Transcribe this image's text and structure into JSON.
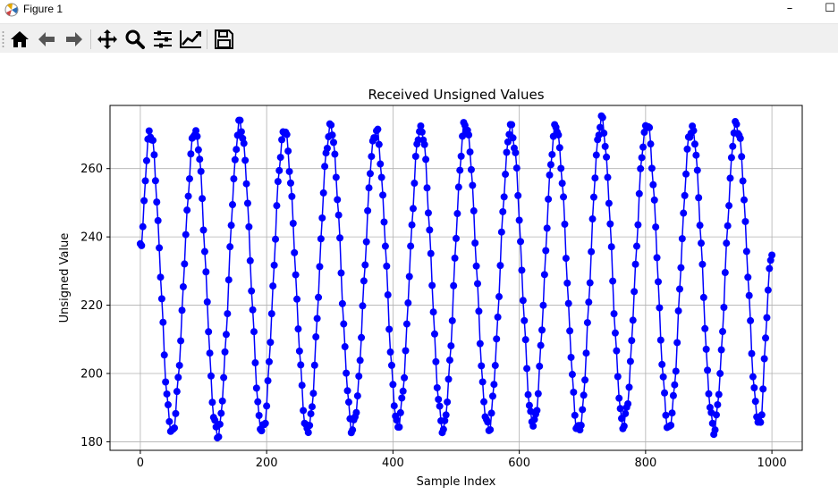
{
  "window": {
    "title": "Figure 1",
    "minimize_label": "–",
    "maximize_label": "☐"
  },
  "toolbar": {
    "tools": [
      {
        "name": "home-icon",
        "tooltip": "Home"
      },
      {
        "name": "back-icon",
        "tooltip": "Back"
      },
      {
        "name": "forward-icon",
        "tooltip": "Forward"
      },
      {
        "name": "pan-icon",
        "tooltip": "Pan"
      },
      {
        "name": "zoom-icon",
        "tooltip": "Zoom"
      },
      {
        "name": "subplots-icon",
        "tooltip": "Subplots"
      },
      {
        "name": "customize-icon",
        "tooltip": "Customize"
      },
      {
        "name": "save-icon",
        "tooltip": "Save"
      }
    ]
  },
  "chart_data": {
    "type": "line",
    "title": "Received Unsigned Values",
    "xlabel": "Sample Index",
    "ylabel": "Unsigned Value",
    "xlim": [
      -48,
      1048
    ],
    "ylim": [
      177.5,
      278.5
    ],
    "xticks": [
      0,
      200,
      400,
      600,
      800,
      1000
    ],
    "yticks": [
      180,
      200,
      220,
      240,
      260
    ],
    "grid": true,
    "marker": "o",
    "color": "#0000ff",
    "series": [
      {
        "x_start": 0,
        "x_end": 1000,
        "peaks": [
          {
            "x": 15,
            "y": 271
          },
          {
            "x": 87,
            "y": 271
          },
          {
            "x": 158,
            "y": 273
          },
          {
            "x": 228,
            "y": 271
          },
          {
            "x": 301,
            "y": 272
          },
          {
            "x": 373,
            "y": 271
          },
          {
            "x": 444,
            "y": 272
          },
          {
            "x": 515,
            "y": 273
          },
          {
            "x": 587,
            "y": 272
          },
          {
            "x": 658,
            "y": 272
          },
          {
            "x": 730,
            "y": 274
          },
          {
            "x": 802,
            "y": 273
          },
          {
            "x": 873,
            "y": 272
          },
          {
            "x": 944,
            "y": 273
          }
        ],
        "troughs": [
          {
            "x": 50,
            "y": 183
          },
          {
            "x": 122,
            "y": 182
          },
          {
            "x": 193,
            "y": 183
          },
          {
            "x": 265,
            "y": 183
          },
          {
            "x": 336,
            "y": 184
          },
          {
            "x": 408,
            "y": 185
          },
          {
            "x": 479,
            "y": 184
          },
          {
            "x": 551,
            "y": 184
          },
          {
            "x": 622,
            "y": 185
          },
          {
            "x": 694,
            "y": 183
          },
          {
            "x": 765,
            "y": 185
          },
          {
            "x": 837,
            "y": 184
          },
          {
            "x": 908,
            "y": 184
          },
          {
            "x": 980,
            "y": 185
          }
        ],
        "start_value": 238,
        "end_value": 235
      }
    ]
  }
}
